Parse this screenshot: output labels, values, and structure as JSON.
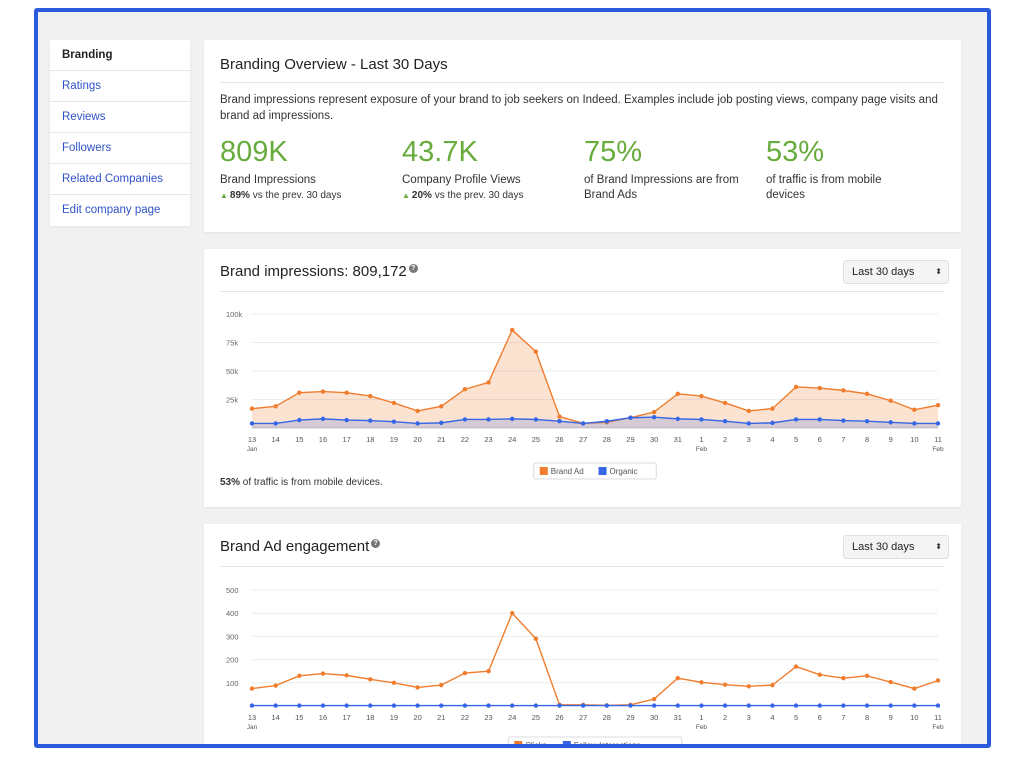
{
  "sidebar": {
    "items": [
      {
        "label": "Branding",
        "active": true
      },
      {
        "label": "Ratings"
      },
      {
        "label": "Reviews"
      },
      {
        "label": "Followers"
      },
      {
        "label": "Related Companies"
      },
      {
        "label": "Edit company page"
      }
    ]
  },
  "overview": {
    "title": "Branding Overview - Last 30 Days",
    "description": "Brand impressions represent exposure of your brand to job seekers on Indeed. Examples include job posting views, company page visits and brand ad impressions.",
    "metrics": [
      {
        "value": "809K",
        "label": "Brand Impressions",
        "change_pct": "89%",
        "change_text": "vs the prev. 30 days"
      },
      {
        "value": "43.7K",
        "label": "Company Profile Views",
        "change_pct": "20%",
        "change_text": "vs the prev. 30 days"
      },
      {
        "value": "75%",
        "label": "of Brand Impressions are from Brand Ads"
      },
      {
        "value": "53%",
        "label": "of traffic is from mobile devices"
      }
    ]
  },
  "impressions_card": {
    "title": "Brand impressions: 809,172",
    "help": "?",
    "range_select": "Last 30 days",
    "footnote_bold": "53%",
    "footnote_rest": " of traffic is from mobile devices."
  },
  "engagement_card": {
    "title": "Brand Ad engagement",
    "help": "?",
    "range_select": "Last 30 days"
  },
  "colors": {
    "accent_green": "#67ac3c",
    "series_orange": "#ef7d2d",
    "series_blue": "#3466e6",
    "link_blue": "#2f52c8",
    "frame_border": "#2a5bdc"
  },
  "chart_data": [
    {
      "type": "area",
      "x": [
        "13 Jan",
        "14",
        "15",
        "16",
        "17",
        "18",
        "19",
        "20",
        "21",
        "22",
        "23",
        "24",
        "25",
        "26",
        "27",
        "28",
        "29",
        "30",
        "31",
        "1 Feb",
        "2",
        "3",
        "4",
        "5",
        "6",
        "7",
        "8",
        "9",
        "10",
        "11 Feb"
      ],
      "tick_labels": [
        "13",
        "14",
        "15",
        "16",
        "17",
        "18",
        "19",
        "20",
        "21",
        "22",
        "23",
        "24",
        "25",
        "26",
        "27",
        "28",
        "29",
        "30",
        "31",
        "1",
        "2",
        "3",
        "4",
        "5",
        "6",
        "7",
        "8",
        "9",
        "10",
        "11"
      ],
      "tick_sublabels": {
        "0": "Jan",
        "19": "Feb",
        "29": "Feb"
      },
      "yticks": [
        0,
        25000,
        50000,
        75000,
        100000
      ],
      "ytick_labels": [
        "",
        "25k",
        "50k",
        "75k",
        "100k"
      ],
      "ylim": [
        0,
        100000
      ],
      "legend_position": "bottom-center",
      "series": [
        {
          "name": "Brand Ad",
          "color": "#ef7d2d",
          "values": [
            17000,
            19000,
            31000,
            32000,
            31000,
            28000,
            22000,
            15000,
            19000,
            34000,
            40000,
            86000,
            67000,
            10000,
            4000,
            5000,
            9000,
            14000,
            30000,
            28000,
            22000,
            15000,
            17000,
            36000,
            35000,
            33000,
            30000,
            24000,
            16000,
            20000
          ]
        },
        {
          "name": "Organic",
          "color": "#3466e6",
          "values": [
            4000,
            4000,
            7000,
            8000,
            7000,
            6500,
            5500,
            4000,
            4500,
            7500,
            7500,
            8000,
            7500,
            6000,
            4000,
            6000,
            9000,
            9500,
            8000,
            7500,
            6000,
            4000,
            4500,
            7500,
            7500,
            6500,
            6000,
            5000,
            4000,
            4000
          ]
        }
      ]
    },
    {
      "type": "line",
      "x": [
        "13 Jan",
        "14",
        "15",
        "16",
        "17",
        "18",
        "19",
        "20",
        "21",
        "22",
        "23",
        "24",
        "25",
        "26",
        "27",
        "28",
        "29",
        "30",
        "31",
        "1 Feb",
        "2",
        "3",
        "4",
        "5",
        "6",
        "7",
        "8",
        "9",
        "10",
        "11 Feb"
      ],
      "tick_labels": [
        "13",
        "14",
        "15",
        "16",
        "17",
        "18",
        "19",
        "20",
        "21",
        "22",
        "23",
        "24",
        "25",
        "26",
        "27",
        "28",
        "29",
        "30",
        "31",
        "1",
        "2",
        "3",
        "4",
        "5",
        "6",
        "7",
        "8",
        "9",
        "10",
        "11"
      ],
      "tick_sublabels": {
        "0": "Jan",
        "19": "Feb",
        "29": "Feb"
      },
      "yticks": [
        100,
        200,
        300,
        400,
        500
      ],
      "ytick_labels": [
        "100",
        "200",
        "300",
        "400",
        "500"
      ],
      "ylim": [
        0,
        500
      ],
      "legend_position": "bottom-center",
      "series": [
        {
          "name": "Clicks",
          "color": "#ef7d2d",
          "values": [
            75,
            88,
            130,
            140,
            132,
            115,
            100,
            80,
            90,
            142,
            150,
            400,
            290,
            5,
            5,
            3,
            5,
            30,
            120,
            102,
            92,
            85,
            90,
            170,
            135,
            120,
            130,
            103,
            75,
            110
          ]
        },
        {
          "name": "Follow Interactions",
          "color": "#3466e6",
          "values": [
            2,
            2,
            2,
            2,
            2,
            2,
            2,
            2,
            2,
            2,
            2,
            2,
            2,
            2,
            2,
            2,
            2,
            2,
            2,
            2,
            2,
            2,
            2,
            2,
            2,
            2,
            2,
            2,
            2,
            2
          ]
        }
      ]
    }
  ]
}
